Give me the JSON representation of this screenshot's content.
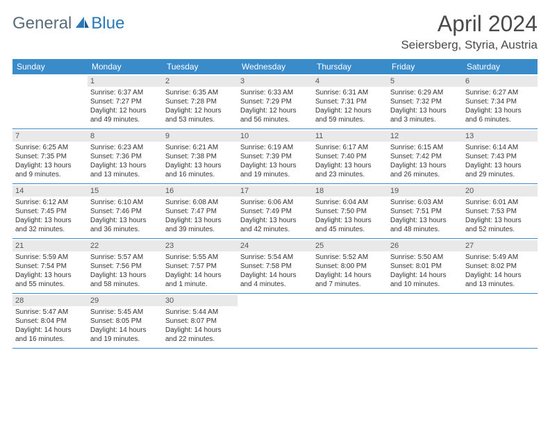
{
  "logo": {
    "general": "General",
    "blue": "Blue"
  },
  "title": "April 2024",
  "location": "Seiersberg, Styria, Austria",
  "colors": {
    "header_bg": "#3a8bc9",
    "header_text": "#ffffff",
    "daynum_bg": "#e9e9e9",
    "border": "#3a8bc9",
    "logo_gray": "#5a6b7a",
    "logo_blue": "#2978b8",
    "text": "#333333"
  },
  "day_names": [
    "Sunday",
    "Monday",
    "Tuesday",
    "Wednesday",
    "Thursday",
    "Friday",
    "Saturday"
  ],
  "weeks": [
    [
      {
        "n": "",
        "sr": "",
        "ss": "",
        "dl": ""
      },
      {
        "n": "1",
        "sr": "Sunrise: 6:37 AM",
        "ss": "Sunset: 7:27 PM",
        "dl": "Daylight: 12 hours and 49 minutes."
      },
      {
        "n": "2",
        "sr": "Sunrise: 6:35 AM",
        "ss": "Sunset: 7:28 PM",
        "dl": "Daylight: 12 hours and 53 minutes."
      },
      {
        "n": "3",
        "sr": "Sunrise: 6:33 AM",
        "ss": "Sunset: 7:29 PM",
        "dl": "Daylight: 12 hours and 56 minutes."
      },
      {
        "n": "4",
        "sr": "Sunrise: 6:31 AM",
        "ss": "Sunset: 7:31 PM",
        "dl": "Daylight: 12 hours and 59 minutes."
      },
      {
        "n": "5",
        "sr": "Sunrise: 6:29 AM",
        "ss": "Sunset: 7:32 PM",
        "dl": "Daylight: 13 hours and 3 minutes."
      },
      {
        "n": "6",
        "sr": "Sunrise: 6:27 AM",
        "ss": "Sunset: 7:34 PM",
        "dl": "Daylight: 13 hours and 6 minutes."
      }
    ],
    [
      {
        "n": "7",
        "sr": "Sunrise: 6:25 AM",
        "ss": "Sunset: 7:35 PM",
        "dl": "Daylight: 13 hours and 9 minutes."
      },
      {
        "n": "8",
        "sr": "Sunrise: 6:23 AM",
        "ss": "Sunset: 7:36 PM",
        "dl": "Daylight: 13 hours and 13 minutes."
      },
      {
        "n": "9",
        "sr": "Sunrise: 6:21 AM",
        "ss": "Sunset: 7:38 PM",
        "dl": "Daylight: 13 hours and 16 minutes."
      },
      {
        "n": "10",
        "sr": "Sunrise: 6:19 AM",
        "ss": "Sunset: 7:39 PM",
        "dl": "Daylight: 13 hours and 19 minutes."
      },
      {
        "n": "11",
        "sr": "Sunrise: 6:17 AM",
        "ss": "Sunset: 7:40 PM",
        "dl": "Daylight: 13 hours and 23 minutes."
      },
      {
        "n": "12",
        "sr": "Sunrise: 6:15 AM",
        "ss": "Sunset: 7:42 PM",
        "dl": "Daylight: 13 hours and 26 minutes."
      },
      {
        "n": "13",
        "sr": "Sunrise: 6:14 AM",
        "ss": "Sunset: 7:43 PM",
        "dl": "Daylight: 13 hours and 29 minutes."
      }
    ],
    [
      {
        "n": "14",
        "sr": "Sunrise: 6:12 AM",
        "ss": "Sunset: 7:45 PM",
        "dl": "Daylight: 13 hours and 32 minutes."
      },
      {
        "n": "15",
        "sr": "Sunrise: 6:10 AM",
        "ss": "Sunset: 7:46 PM",
        "dl": "Daylight: 13 hours and 36 minutes."
      },
      {
        "n": "16",
        "sr": "Sunrise: 6:08 AM",
        "ss": "Sunset: 7:47 PM",
        "dl": "Daylight: 13 hours and 39 minutes."
      },
      {
        "n": "17",
        "sr": "Sunrise: 6:06 AM",
        "ss": "Sunset: 7:49 PM",
        "dl": "Daylight: 13 hours and 42 minutes."
      },
      {
        "n": "18",
        "sr": "Sunrise: 6:04 AM",
        "ss": "Sunset: 7:50 PM",
        "dl": "Daylight: 13 hours and 45 minutes."
      },
      {
        "n": "19",
        "sr": "Sunrise: 6:03 AM",
        "ss": "Sunset: 7:51 PM",
        "dl": "Daylight: 13 hours and 48 minutes."
      },
      {
        "n": "20",
        "sr": "Sunrise: 6:01 AM",
        "ss": "Sunset: 7:53 PM",
        "dl": "Daylight: 13 hours and 52 minutes."
      }
    ],
    [
      {
        "n": "21",
        "sr": "Sunrise: 5:59 AM",
        "ss": "Sunset: 7:54 PM",
        "dl": "Daylight: 13 hours and 55 minutes."
      },
      {
        "n": "22",
        "sr": "Sunrise: 5:57 AM",
        "ss": "Sunset: 7:56 PM",
        "dl": "Daylight: 13 hours and 58 minutes."
      },
      {
        "n": "23",
        "sr": "Sunrise: 5:55 AM",
        "ss": "Sunset: 7:57 PM",
        "dl": "Daylight: 14 hours and 1 minute."
      },
      {
        "n": "24",
        "sr": "Sunrise: 5:54 AM",
        "ss": "Sunset: 7:58 PM",
        "dl": "Daylight: 14 hours and 4 minutes."
      },
      {
        "n": "25",
        "sr": "Sunrise: 5:52 AM",
        "ss": "Sunset: 8:00 PM",
        "dl": "Daylight: 14 hours and 7 minutes."
      },
      {
        "n": "26",
        "sr": "Sunrise: 5:50 AM",
        "ss": "Sunset: 8:01 PM",
        "dl": "Daylight: 14 hours and 10 minutes."
      },
      {
        "n": "27",
        "sr": "Sunrise: 5:49 AM",
        "ss": "Sunset: 8:02 PM",
        "dl": "Daylight: 14 hours and 13 minutes."
      }
    ],
    [
      {
        "n": "28",
        "sr": "Sunrise: 5:47 AM",
        "ss": "Sunset: 8:04 PM",
        "dl": "Daylight: 14 hours and 16 minutes."
      },
      {
        "n": "29",
        "sr": "Sunrise: 5:45 AM",
        "ss": "Sunset: 8:05 PM",
        "dl": "Daylight: 14 hours and 19 minutes."
      },
      {
        "n": "30",
        "sr": "Sunrise: 5:44 AM",
        "ss": "Sunset: 8:07 PM",
        "dl": "Daylight: 14 hours and 22 minutes."
      },
      {
        "n": "",
        "sr": "",
        "ss": "",
        "dl": ""
      },
      {
        "n": "",
        "sr": "",
        "ss": "",
        "dl": ""
      },
      {
        "n": "",
        "sr": "",
        "ss": "",
        "dl": ""
      },
      {
        "n": "",
        "sr": "",
        "ss": "",
        "dl": ""
      }
    ]
  ]
}
